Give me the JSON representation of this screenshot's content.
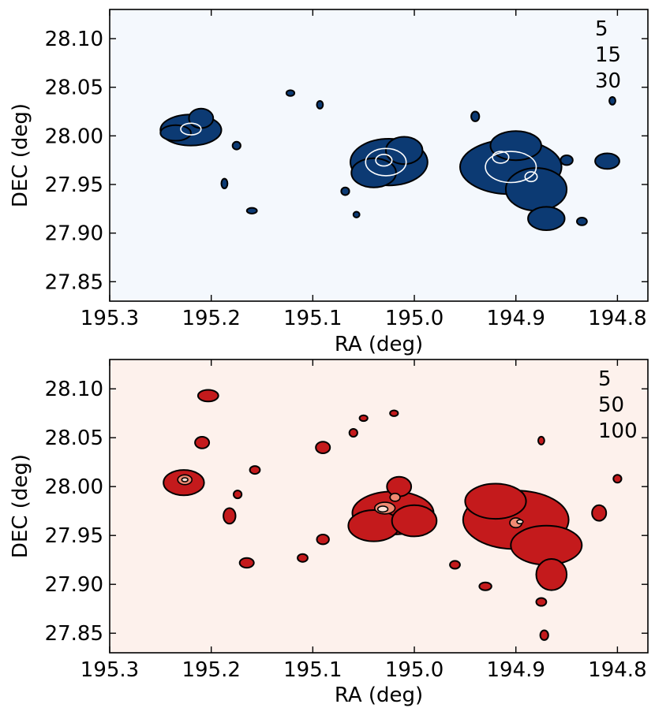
{
  "chart_data": [
    {
      "type": "heatmap",
      "colormap": "Blues",
      "background_color": "#f4f8fd",
      "fill_color": "#0c3a73",
      "contour_line_colors": [
        "#000000",
        "#ffffff",
        "#ffffff"
      ],
      "xlabel": "RA (deg)",
      "ylabel": "DEC (deg)",
      "xlim": [
        195.3,
        194.77
      ],
      "ylim": [
        27.83,
        28.13
      ],
      "x_ticks": [
        195.3,
        195.2,
        195.1,
        195.0,
        194.9,
        194.8
      ],
      "x_tick_labels": [
        "195.3",
        "195.2",
        "195.1",
        "195.0",
        "194.9",
        "194.8"
      ],
      "y_ticks": [
        28.1,
        28.05,
        28.0,
        27.95,
        27.9,
        27.85
      ],
      "y_tick_labels": [
        "28.10",
        "28.05",
        "28.00",
        "27.95",
        "27.90",
        "27.85"
      ],
      "contour_levels": [
        "5",
        "15",
        "30"
      ],
      "clumps": [
        {
          "ra": 195.22,
          "dec": 28.006,
          "r_ra": 0.03,
          "r_dec": 0.016,
          "level": 1
        },
        {
          "ra": 195.235,
          "dec": 28.003,
          "r_ra": 0.015,
          "r_dec": 0.008,
          "level": 1
        },
        {
          "ra": 195.21,
          "dec": 28.018,
          "r_ra": 0.012,
          "r_dec": 0.01,
          "level": 1
        },
        {
          "ra": 195.22,
          "dec": 28.007,
          "r_ra": 0.01,
          "r_dec": 0.006,
          "level": 2
        },
        {
          "ra": 195.025,
          "dec": 27.973,
          "r_ra": 0.038,
          "r_dec": 0.024,
          "level": 1
        },
        {
          "ra": 195.04,
          "dec": 27.962,
          "r_ra": 0.022,
          "r_dec": 0.015,
          "level": 1
        },
        {
          "ra": 195.01,
          "dec": 27.985,
          "r_ra": 0.018,
          "r_dec": 0.014,
          "level": 1
        },
        {
          "ra": 195.028,
          "dec": 27.973,
          "r_ra": 0.02,
          "r_dec": 0.014,
          "level": 2
        },
        {
          "ra": 195.03,
          "dec": 27.975,
          "r_ra": 0.008,
          "r_dec": 0.006,
          "level": 3
        },
        {
          "ra": 194.905,
          "dec": 27.968,
          "r_ra": 0.05,
          "r_dec": 0.028,
          "level": 1
        },
        {
          "ra": 194.88,
          "dec": 27.945,
          "r_ra": 0.03,
          "r_dec": 0.022,
          "level": 1
        },
        {
          "ra": 194.87,
          "dec": 27.915,
          "r_ra": 0.018,
          "r_dec": 0.012,
          "level": 1
        },
        {
          "ra": 194.9,
          "dec": 27.99,
          "r_ra": 0.025,
          "r_dec": 0.015,
          "level": 1
        },
        {
          "ra": 194.905,
          "dec": 27.968,
          "r_ra": 0.025,
          "r_dec": 0.016,
          "level": 2
        },
        {
          "ra": 194.915,
          "dec": 27.978,
          "r_ra": 0.008,
          "r_dec": 0.006,
          "level": 3
        },
        {
          "ra": 194.885,
          "dec": 27.958,
          "r_ra": 0.006,
          "r_dec": 0.005,
          "level": 3
        },
        {
          "ra": 194.81,
          "dec": 27.974,
          "r_ra": 0.012,
          "r_dec": 0.008,
          "level": 1
        },
        {
          "ra": 195.175,
          "dec": 27.99,
          "r_ra": 0.004,
          "r_dec": 0.004,
          "level": 1
        },
        {
          "ra": 195.16,
          "dec": 27.923,
          "r_ra": 0.005,
          "r_dec": 0.003,
          "level": 1
        },
        {
          "ra": 195.187,
          "dec": 27.951,
          "r_ra": 0.003,
          "r_dec": 0.005,
          "level": 1
        },
        {
          "ra": 195.093,
          "dec": 28.032,
          "r_ra": 0.003,
          "r_dec": 0.004,
          "level": 1
        },
        {
          "ra": 195.122,
          "dec": 28.044,
          "r_ra": 0.004,
          "r_dec": 0.003,
          "level": 1
        },
        {
          "ra": 195.068,
          "dec": 27.943,
          "r_ra": 0.004,
          "r_dec": 0.004,
          "level": 1
        },
        {
          "ra": 195.057,
          "dec": 27.919,
          "r_ra": 0.003,
          "r_dec": 0.003,
          "level": 1
        },
        {
          "ra": 194.94,
          "dec": 28.02,
          "r_ra": 0.004,
          "r_dec": 0.005,
          "level": 1
        },
        {
          "ra": 194.85,
          "dec": 27.975,
          "r_ra": 0.006,
          "r_dec": 0.005,
          "level": 1
        },
        {
          "ra": 194.805,
          "dec": 28.036,
          "r_ra": 0.003,
          "r_dec": 0.004,
          "level": 1
        },
        {
          "ra": 194.835,
          "dec": 27.912,
          "r_ra": 0.005,
          "r_dec": 0.004,
          "level": 1
        }
      ]
    },
    {
      "type": "heatmap",
      "colormap": "Reds",
      "background_color": "#fdf1ec",
      "fill_color": "#c41a1c",
      "contour_line_colors": [
        "#000000",
        "#000000",
        "#000000"
      ],
      "inner_fill_colors": [
        "#c41a1c",
        "#f08a72",
        "#fde3d8"
      ],
      "xlabel": "RA (deg)",
      "ylabel": "DEC (deg)",
      "xlim": [
        195.3,
        194.77
      ],
      "ylim": [
        27.83,
        28.13
      ],
      "x_ticks": [
        195.3,
        195.2,
        195.1,
        195.0,
        194.9,
        194.8
      ],
      "x_tick_labels": [
        "195.3",
        "195.2",
        "195.1",
        "195.0",
        "194.9",
        "194.8"
      ],
      "y_ticks": [
        28.1,
        28.05,
        28.0,
        27.95,
        27.9,
        27.85
      ],
      "y_tick_labels": [
        "28.10",
        "28.05",
        "28.00",
        "27.95",
        "27.90",
        "27.85"
      ],
      "contour_levels": [
        "5",
        "50",
        "100"
      ],
      "clumps": [
        {
          "ra": 195.227,
          "dec": 28.004,
          "r_ra": 0.02,
          "r_dec": 0.013,
          "level": 1
        },
        {
          "ra": 195.226,
          "dec": 28.007,
          "r_ra": 0.007,
          "r_dec": 0.005,
          "level": 2
        },
        {
          "ra": 195.226,
          "dec": 28.007,
          "r_ra": 0.003,
          "r_dec": 0.002,
          "level": 3
        },
        {
          "ra": 195.203,
          "dec": 28.093,
          "r_ra": 0.01,
          "r_dec": 0.006,
          "level": 1
        },
        {
          "ra": 195.209,
          "dec": 28.045,
          "r_ra": 0.007,
          "r_dec": 0.006,
          "level": 1
        },
        {
          "ra": 195.182,
          "dec": 27.97,
          "r_ra": 0.006,
          "r_dec": 0.008,
          "level": 1
        },
        {
          "ra": 195.174,
          "dec": 27.992,
          "r_ra": 0.004,
          "r_dec": 0.004,
          "level": 1
        },
        {
          "ra": 195.157,
          "dec": 28.017,
          "r_ra": 0.005,
          "r_dec": 0.004,
          "level": 1
        },
        {
          "ra": 195.165,
          "dec": 27.922,
          "r_ra": 0.007,
          "r_dec": 0.005,
          "level": 1
        },
        {
          "ra": 195.09,
          "dec": 28.04,
          "r_ra": 0.007,
          "r_dec": 0.006,
          "level": 1
        },
        {
          "ra": 195.09,
          "dec": 27.946,
          "r_ra": 0.006,
          "r_dec": 0.005,
          "level": 1
        },
        {
          "ra": 195.11,
          "dec": 27.927,
          "r_ra": 0.005,
          "r_dec": 0.004,
          "level": 1
        },
        {
          "ra": 195.06,
          "dec": 28.055,
          "r_ra": 0.004,
          "r_dec": 0.004,
          "level": 1
        },
        {
          "ra": 195.05,
          "dec": 28.07,
          "r_ra": 0.004,
          "r_dec": 0.003,
          "level": 1
        },
        {
          "ra": 195.02,
          "dec": 28.075,
          "r_ra": 0.004,
          "r_dec": 0.003,
          "level": 1
        },
        {
          "ra": 195.021,
          "dec": 27.973,
          "r_ra": 0.04,
          "r_dec": 0.022,
          "level": 1
        },
        {
          "ra": 195.04,
          "dec": 27.96,
          "r_ra": 0.025,
          "r_dec": 0.016,
          "level": 1
        },
        {
          "ra": 195.0,
          "dec": 27.965,
          "r_ra": 0.022,
          "r_dec": 0.016,
          "level": 1
        },
        {
          "ra": 195.015,
          "dec": 28.0,
          "r_ra": 0.012,
          "r_dec": 0.01,
          "level": 1
        },
        {
          "ra": 195.029,
          "dec": 27.978,
          "r_ra": 0.01,
          "r_dec": 0.006,
          "level": 2
        },
        {
          "ra": 195.019,
          "dec": 27.989,
          "r_ra": 0.005,
          "r_dec": 0.004,
          "level": 2
        },
        {
          "ra": 195.031,
          "dec": 27.977,
          "r_ra": 0.005,
          "r_dec": 0.003,
          "level": 3
        },
        {
          "ra": 194.9,
          "dec": 27.966,
          "r_ra": 0.052,
          "r_dec": 0.03,
          "level": 1
        },
        {
          "ra": 194.87,
          "dec": 27.94,
          "r_ra": 0.035,
          "r_dec": 0.02,
          "level": 1
        },
        {
          "ra": 194.92,
          "dec": 27.985,
          "r_ra": 0.03,
          "r_dec": 0.018,
          "level": 1
        },
        {
          "ra": 194.865,
          "dec": 27.91,
          "r_ra": 0.015,
          "r_dec": 0.016,
          "level": 1
        },
        {
          "ra": 194.9,
          "dec": 27.963,
          "r_ra": 0.006,
          "r_dec": 0.005,
          "level": 2
        },
        {
          "ra": 194.896,
          "dec": 27.964,
          "r_ra": 0.003,
          "r_dec": 0.002,
          "level": 3
        },
        {
          "ra": 194.818,
          "dec": 27.973,
          "r_ra": 0.007,
          "r_dec": 0.008,
          "level": 1
        },
        {
          "ra": 194.8,
          "dec": 28.008,
          "r_ra": 0.004,
          "r_dec": 0.004,
          "level": 1
        },
        {
          "ra": 194.875,
          "dec": 27.882,
          "r_ra": 0.005,
          "r_dec": 0.004,
          "level": 1
        },
        {
          "ra": 194.872,
          "dec": 27.848,
          "r_ra": 0.004,
          "r_dec": 0.005,
          "level": 1
        },
        {
          "ra": 194.93,
          "dec": 27.898,
          "r_ra": 0.006,
          "r_dec": 0.004,
          "level": 1
        },
        {
          "ra": 194.96,
          "dec": 27.92,
          "r_ra": 0.005,
          "r_dec": 0.004,
          "level": 1
        },
        {
          "ra": 194.875,
          "dec": 28.047,
          "r_ra": 0.003,
          "r_dec": 0.004,
          "level": 1
        }
      ]
    }
  ]
}
